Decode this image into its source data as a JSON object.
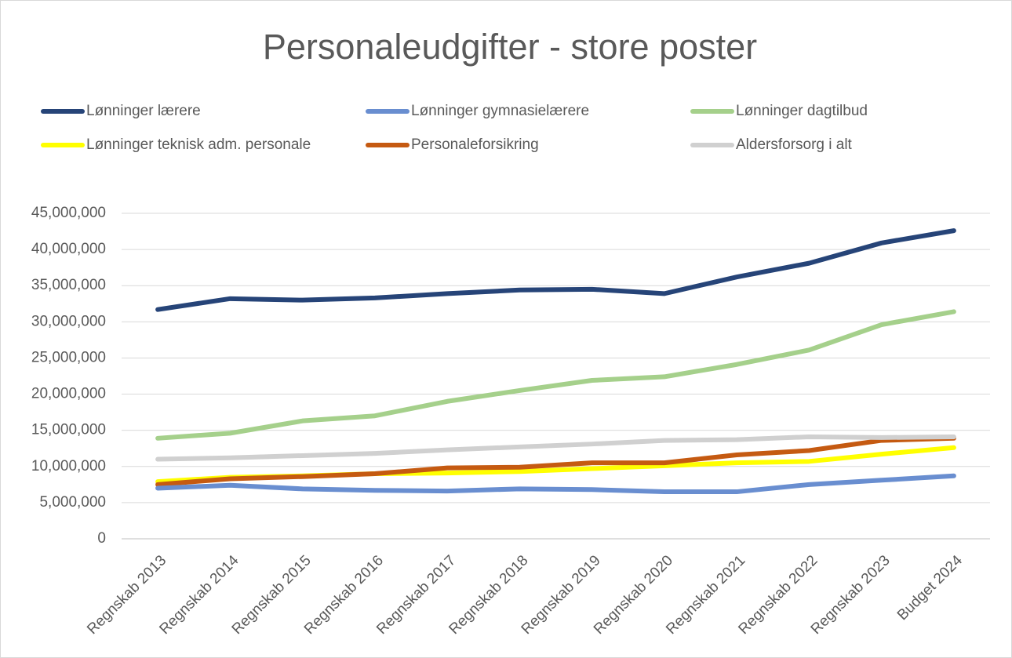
{
  "chart_data": {
    "type": "line",
    "title": "Personaleudgifter - store poster",
    "categories": [
      "Regnskab 2013",
      "Regnskab 2014",
      "Regnskab 2015",
      "Regnskab 2016",
      "Regnskab 2017",
      "Regnskab 2018",
      "Regnskab 2019",
      "Regnskab 2020",
      "Regnskab 2021",
      "Regnskab 2022",
      "Regnskab 2023",
      "Budget 2024"
    ],
    "series": [
      {
        "name": "Lønninger lærere",
        "color": "#264478",
        "values": [
          31700000,
          33200000,
          33000000,
          33300000,
          33900000,
          34400000,
          34500000,
          33900000,
          36200000,
          38100000,
          40900000,
          42600000
        ]
      },
      {
        "name": "Lønninger gymnasielærere",
        "color": "#698ed0",
        "values": [
          7000000,
          7400000,
          6900000,
          6700000,
          6600000,
          6900000,
          6800000,
          6500000,
          6500000,
          7500000,
          8100000,
          8700000
        ]
      },
      {
        "name": "Lønninger dagtilbud",
        "color": "#a5d08b",
        "values": [
          13900000,
          14600000,
          16300000,
          17000000,
          19000000,
          20500000,
          21900000,
          22400000,
          24100000,
          26100000,
          29600000,
          31400000
        ]
      },
      {
        "name": "Lønninger teknisk adm. personale",
        "color": "#ffff00",
        "values": [
          7900000,
          8500000,
          8700000,
          9000000,
          9100000,
          9300000,
          9700000,
          10100000,
          10500000,
          10700000,
          11700000,
          12600000
        ]
      },
      {
        "name": "Personaleforsikring",
        "color": "#c55a11",
        "values": [
          7500000,
          8300000,
          8600000,
          9000000,
          9800000,
          9900000,
          10500000,
          10500000,
          11600000,
          12200000,
          13600000,
          13900000
        ]
      },
      {
        "name": "Aldersforsorg i alt",
        "color": "#d0d0d0",
        "values": [
          11000000,
          11200000,
          11500000,
          11800000,
          12300000,
          12700000,
          13100000,
          13600000,
          13700000,
          14100000,
          14000000,
          14100000
        ]
      }
    ],
    "ylim": [
      0,
      45000000
    ],
    "yticks": [
      0,
      {
        "value": 5000000,
        "label": "5,000,000"
      },
      {
        "value": 10000000,
        "label": "10,000,000"
      },
      {
        "value": 15000000,
        "label": "15,000,000"
      },
      {
        "value": 20000000,
        "label": "20,000,000"
      },
      {
        "value": 25000000,
        "label": "25,000,000"
      },
      {
        "value": 30000000,
        "label": "30,000,000"
      },
      {
        "value": 35000000,
        "label": "35,000,000"
      },
      {
        "value": 40000000,
        "label": "40,000,000"
      },
      {
        "value": 45000000,
        "label": "45,000,000"
      }
    ],
    "grid": true,
    "legend": "top"
  }
}
